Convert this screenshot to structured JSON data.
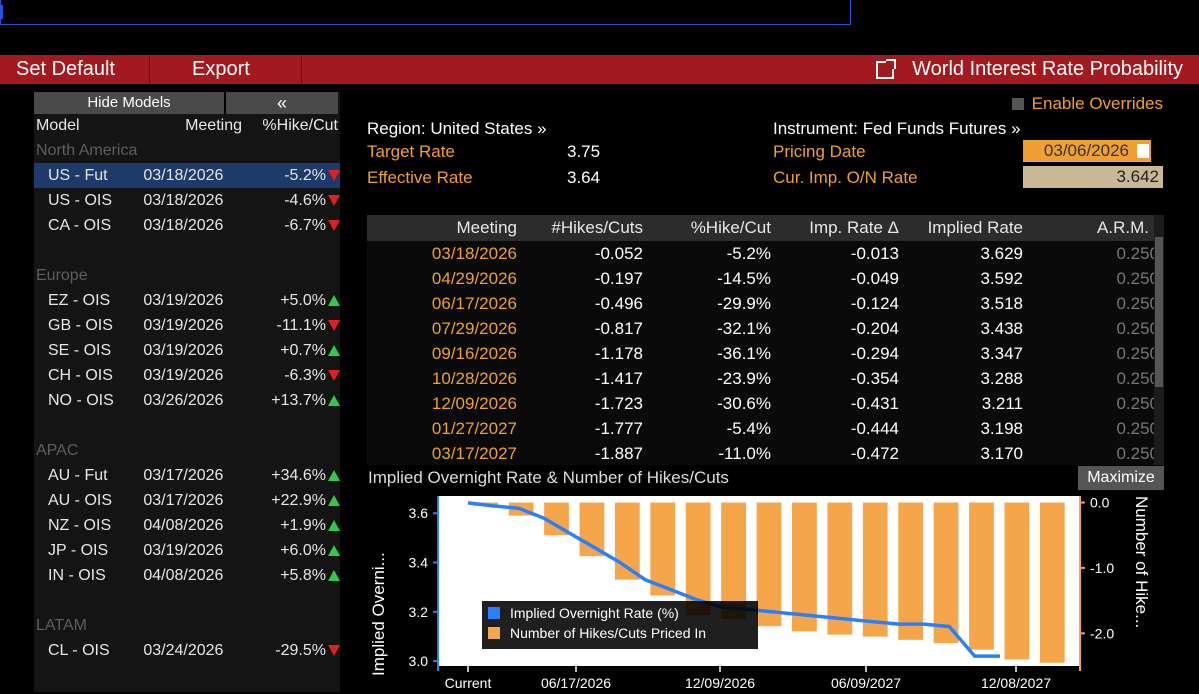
{
  "toolbar": {
    "set_default": "Set Default",
    "export": "Export",
    "title": "World Interest Rate Probability"
  },
  "left_panel": {
    "hide_models": "Hide Models",
    "collapse": "«",
    "headers": {
      "model": "Model",
      "meeting": "Meeting",
      "pct": "%Hike/Cut"
    },
    "groups": [
      {
        "region": "North America",
        "rows": [
          {
            "model": "US - Fut",
            "meeting": "03/18/2026",
            "pct": "-5.2%",
            "dir": "down",
            "selected": true
          },
          {
            "model": "US - OIS",
            "meeting": "03/18/2026",
            "pct": "-4.6%",
            "dir": "down"
          },
          {
            "model": "CA - OIS",
            "meeting": "03/18/2026",
            "pct": "-6.7%",
            "dir": "down"
          }
        ]
      },
      {
        "region": "Europe",
        "rows": [
          {
            "model": "EZ - OIS",
            "meeting": "03/19/2026",
            "pct": "+5.0%",
            "dir": "up"
          },
          {
            "model": "GB - OIS",
            "meeting": "03/19/2026",
            "pct": "-11.1%",
            "dir": "down"
          },
          {
            "model": "SE - OIS",
            "meeting": "03/19/2026",
            "pct": "+0.7%",
            "dir": "up"
          },
          {
            "model": "CH - OIS",
            "meeting": "03/19/2026",
            "pct": "-6.3%",
            "dir": "down"
          },
          {
            "model": "NO - OIS",
            "meeting": "03/26/2026",
            "pct": "+13.7%",
            "dir": "up"
          }
        ]
      },
      {
        "region": "APAC",
        "rows": [
          {
            "model": "AU - Fut",
            "meeting": "03/17/2026",
            "pct": "+34.6%",
            "dir": "up"
          },
          {
            "model": "AU - OIS",
            "meeting": "03/17/2026",
            "pct": "+22.9%",
            "dir": "up"
          },
          {
            "model": "NZ - OIS",
            "meeting": "04/08/2026",
            "pct": "+1.9%",
            "dir": "up"
          },
          {
            "model": "JP - OIS",
            "meeting": "03/19/2026",
            "pct": "+6.0%",
            "dir": "up"
          },
          {
            "model": "IN - OIS",
            "meeting": "04/08/2026",
            "pct": "+5.8%",
            "dir": "up"
          }
        ]
      },
      {
        "region": "LATAM",
        "rows": [
          {
            "model": "CL - OIS",
            "meeting": "03/24/2026",
            "pct": "-29.5%",
            "dir": "down"
          }
        ]
      }
    ]
  },
  "info": {
    "enable_overrides": "Enable Overrides",
    "region": "Region: United States »",
    "instrument": "Instrument: Fed Funds Futures »",
    "target_rate_label": "Target Rate",
    "target_rate": "3.75",
    "effective_rate_label": "Effective Rate",
    "effective_rate": "3.64",
    "pricing_date_label": "Pricing Date",
    "pricing_date": "03/06/2026",
    "cur_imp_label": "Cur. Imp. O/N Rate",
    "cur_imp": "3.642"
  },
  "table": {
    "headers": {
      "meeting": "Meeting",
      "hikes": "#Hikes/Cuts",
      "pct": "%Hike/Cut",
      "imp": "Imp. Rate Δ",
      "rate": "Implied Rate",
      "arm": "A.R.M."
    },
    "rows": [
      {
        "meeting": "03/18/2026",
        "hikes": "-0.052",
        "pct": "-5.2%",
        "imp": "-0.013",
        "rate": "3.629",
        "arm": "0.250"
      },
      {
        "meeting": "04/29/2026",
        "hikes": "-0.197",
        "pct": "-14.5%",
        "imp": "-0.049",
        "rate": "3.592",
        "arm": "0.250"
      },
      {
        "meeting": "06/17/2026",
        "hikes": "-0.496",
        "pct": "-29.9%",
        "imp": "-0.124",
        "rate": "3.518",
        "arm": "0.250"
      },
      {
        "meeting": "07/29/2026",
        "hikes": "-0.817",
        "pct": "-32.1%",
        "imp": "-0.204",
        "rate": "3.438",
        "arm": "0.250"
      },
      {
        "meeting": "09/16/2026",
        "hikes": "-1.178",
        "pct": "-36.1%",
        "imp": "-0.294",
        "rate": "3.347",
        "arm": "0.250"
      },
      {
        "meeting": "10/28/2026",
        "hikes": "-1.417",
        "pct": "-23.9%",
        "imp": "-0.354",
        "rate": "3.288",
        "arm": "0.250"
      },
      {
        "meeting": "12/09/2026",
        "hikes": "-1.723",
        "pct": "-30.6%",
        "imp": "-0.431",
        "rate": "3.211",
        "arm": "0.250"
      },
      {
        "meeting": "01/27/2027",
        "hikes": "-1.777",
        "pct": "-5.4%",
        "imp": "-0.444",
        "rate": "3.198",
        "arm": "0.250"
      },
      {
        "meeting": "03/17/2027",
        "hikes": "-1.887",
        "pct": "-11.0%",
        "imp": "-0.472",
        "rate": "3.170",
        "arm": "0.250"
      }
    ]
  },
  "chart": {
    "title": "Implied Overnight Rate & Number of Hikes/Cuts",
    "maximize": "Maximize"
  },
  "chart_data": {
    "type": "bar",
    "left_ylabel": "Implied Overni...",
    "right_ylabel": "Number of Hike...",
    "left_yticks": [
      "3.6",
      "3.4",
      "3.2",
      "3.0"
    ],
    "left_ylim": [
      2.98,
      3.67
    ],
    "right_yticks": [
      "0.0",
      "-1.0",
      "-2.0"
    ],
    "right_ylim": [
      -2.5,
      0.1
    ],
    "xticks": [
      "Current",
      "06/17/2026",
      "12/09/2026",
      "06/09/2027",
      "12/08/2027"
    ],
    "series": [
      {
        "name": "Implied Overnight Rate (%)",
        "color": "#2a7fff",
        "kind": "line",
        "values": [
          3.642,
          3.63,
          3.62,
          3.58,
          3.52,
          3.46,
          3.4,
          3.33,
          3.29,
          3.25,
          3.22,
          3.21,
          3.2,
          3.19,
          3.18,
          3.17,
          3.16,
          3.15,
          3.15,
          3.14,
          3.02,
          3.02
        ]
      },
      {
        "name": "Number of Hikes/Cuts Priced In",
        "color": "#f5a54a",
        "kind": "bar",
        "values": [
          -0.05,
          -0.2,
          -0.5,
          -0.82,
          -1.18,
          -1.42,
          -1.72,
          -1.78,
          -1.89,
          -1.97,
          -2.02,
          -2.05,
          -2.1,
          -2.15,
          -2.25,
          -2.4,
          -2.45
        ]
      }
    ]
  },
  "colors": {
    "accent": "#f0a030",
    "toolbar": "#a21a1f",
    "up": "#32c84a",
    "down": "#e02020"
  }
}
